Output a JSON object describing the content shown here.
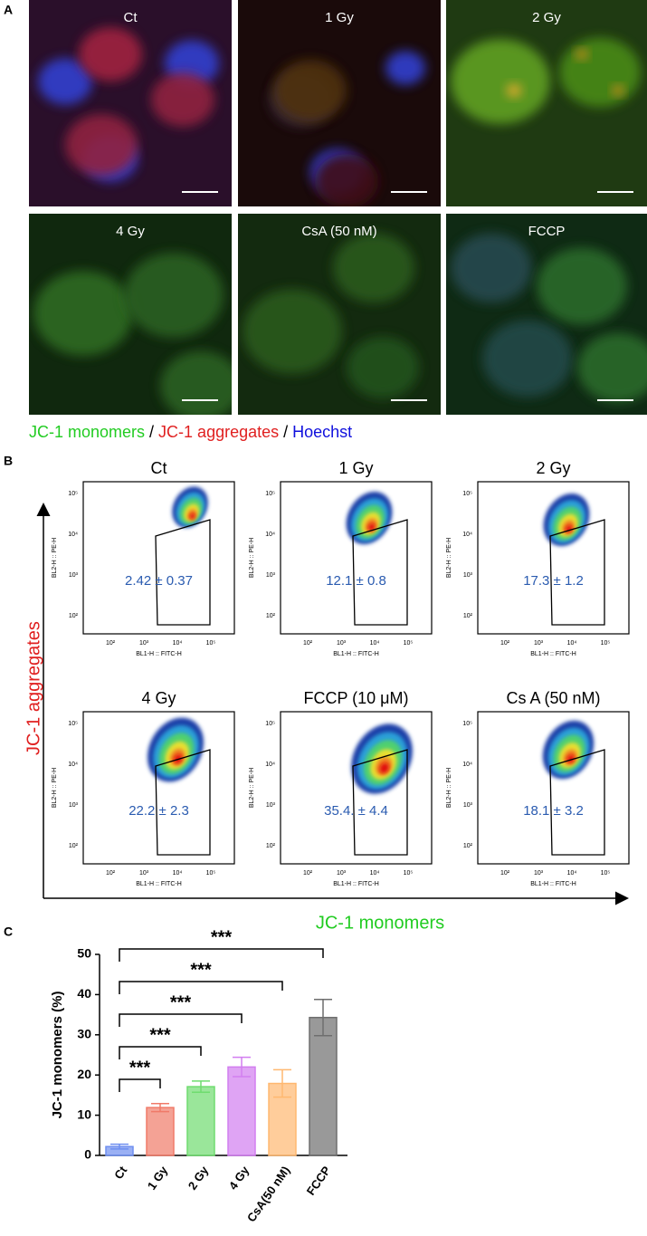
{
  "panel_a": {
    "label": "A",
    "images": [
      {
        "label": "Ct"
      },
      {
        "label": "1 Gy"
      },
      {
        "label": "2 Gy"
      },
      {
        "label": "4 Gy"
      },
      {
        "label": "CsA (50 nM)"
      },
      {
        "label": "FCCP"
      }
    ],
    "legend": {
      "monomers": "JC-1 monomers",
      "aggregates": "JC-1 aggregates",
      "hoechst": "Hoechst",
      "separator": "/"
    }
  },
  "panel_b": {
    "label": "B",
    "y_axis_label": "JC-1 aggregates",
    "x_axis_label": "JC-1 monomers",
    "plot_x_label": "BL1-H :: FITC-H",
    "plot_y_label": "BL2-H :: PE-H",
    "ticks": [
      "10²",
      "10³",
      "10⁴",
      "10⁵"
    ],
    "plots": [
      {
        "title": "Ct",
        "value": "2.42 ± 0.37"
      },
      {
        "title": "1 Gy",
        "value": "12.1 ± 0.8"
      },
      {
        "title": "2 Gy",
        "value": "17.3 ± 1.2"
      },
      {
        "title": "4 Gy",
        "value": "22.2 ± 2.3"
      },
      {
        "title": "FCCP (10 μM)",
        "value": "35.4. ± 4.4"
      },
      {
        "title": "Cs A (50 nM)",
        "value": "18.1 ± 3.2"
      }
    ]
  },
  "chart_data": {
    "type": "bar",
    "label": "C",
    "y_label": "JC-1 monomers (%)",
    "categories": [
      "Ct",
      "1 Gy",
      "2 Gy",
      "4 Gy",
      "CsA(50 nM)",
      "FCCP"
    ],
    "values": [
      2.2,
      11.9,
      17.1,
      22.0,
      17.9,
      34.3
    ],
    "errors": [
      0.6,
      1.0,
      1.4,
      2.4,
      3.4,
      4.5
    ],
    "colors": [
      "#6f8ff0",
      "#f07a68",
      "#6fdc6f",
      "#d27ef0",
      "#ffb870",
      "#6e6e6e"
    ],
    "ylim": [
      0,
      50
    ],
    "yticks": [
      0,
      10,
      20,
      30,
      40,
      50
    ],
    "annotations": [
      {
        "text": "***"
      },
      {
        "text": "***"
      },
      {
        "text": "***"
      },
      {
        "text": "***"
      },
      {
        "text": "***"
      }
    ]
  }
}
